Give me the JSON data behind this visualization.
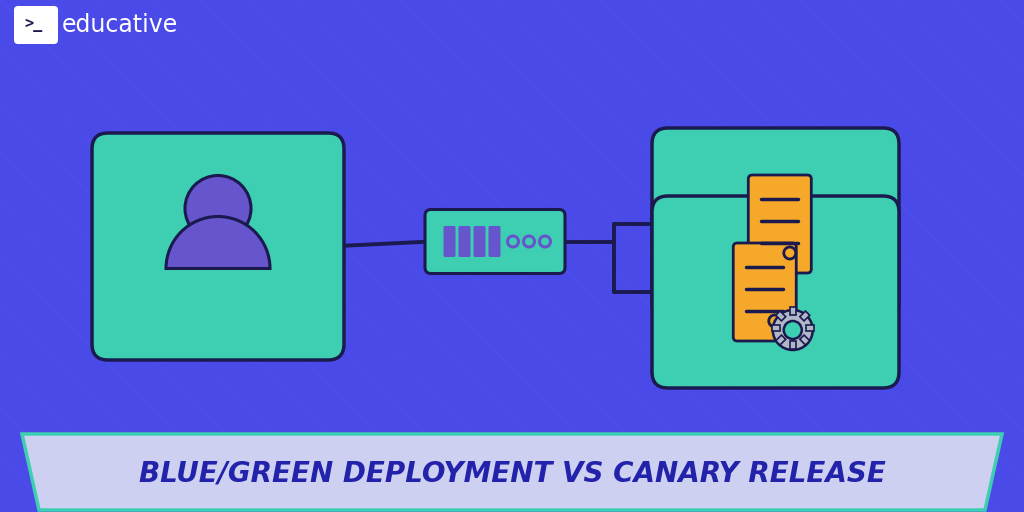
{
  "bg_color": "#4a4ae8",
  "teal_color": "#3ecfb2",
  "purple_icon": "#6655cc",
  "dark_navy": "#1a1a4e",
  "orange_color": "#f5a82a",
  "banner_bg": "#cdd0f0",
  "banner_text_color": "#2222aa",
  "title": "BLUE/GREEN DEPLOYMENT VS CANARY RELEASE",
  "logo_text": "educative",
  "white": "#ffffff",
  "line_color": "#1a1a4e",
  "gear_color": "#b0b8c8"
}
